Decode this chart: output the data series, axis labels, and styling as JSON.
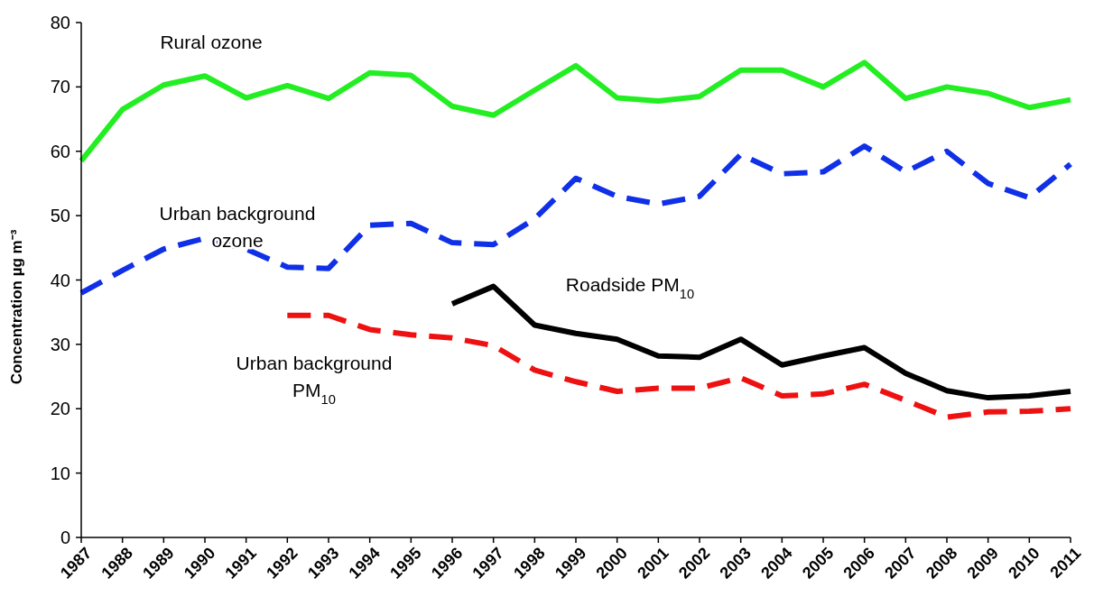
{
  "chart_data": {
    "type": "line",
    "ylabel": "Concentration µg m⁻³",
    "categories": [
      "1987",
      "1988",
      "1989",
      "1990",
      "1991",
      "1992",
      "1993",
      "1994",
      "1995",
      "1996",
      "1997",
      "1998",
      "1999",
      "2000",
      "2001",
      "2002",
      "2003",
      "2004",
      "2005",
      "2006",
      "2007",
      "2008",
      "2009",
      "2010",
      "2011"
    ],
    "ylim": [
      0,
      80
    ],
    "yticks": [
      0,
      10,
      20,
      30,
      40,
      50,
      60,
      70,
      80
    ],
    "grid": false,
    "legend": false,
    "marker": "none",
    "series": [
      {
        "name": "Rural ozone",
        "color": "#22ee22",
        "line_style": "solid",
        "values": [
          58.5,
          66.5,
          70.3,
          71.7,
          68.3,
          70.2,
          68.2,
          72.2,
          71.8,
          67,
          65.6,
          69.5,
          73.3,
          68.3,
          67.8,
          68.5,
          72.6,
          72.6,
          70,
          73.8,
          68.2,
          70,
          69,
          66.8,
          68
        ]
      },
      {
        "name": "Urban background ozone",
        "color": "#1030e8",
        "line_style": "dashed",
        "values": [
          38,
          41.5,
          44.8,
          46.5,
          44.8,
          42,
          41.8,
          48.5,
          48.8,
          45.8,
          45.5,
          49.5,
          55.8,
          53,
          51.8,
          53,
          59.5,
          56.5,
          56.8,
          60.8,
          56.8,
          60,
          55,
          52.8,
          58
        ]
      },
      {
        "name": "Roadside PM$_{10}$",
        "color": "#000000",
        "line_style": "solid",
        "values": [
          null,
          null,
          null,
          null,
          null,
          null,
          null,
          null,
          null,
          36.3,
          39,
          33,
          31.7,
          30.8,
          28.2,
          28,
          30.8,
          26.8,
          28.2,
          29.5,
          25.5,
          22.8,
          21.7,
          22,
          22.7
        ]
      },
      {
        "name": "Urban background PM$_{10}$",
        "color": "#ee1111",
        "line_style": "dashed",
        "values": [
          null,
          null,
          null,
          null,
          null,
          34.5,
          34.5,
          32.3,
          31.5,
          31,
          29.8,
          26,
          24.2,
          22.7,
          23.2,
          23.2,
          24.8,
          22,
          22.3,
          23.8,
          21.3,
          18.7,
          19.5,
          19.6,
          20
        ]
      }
    ]
  }
}
